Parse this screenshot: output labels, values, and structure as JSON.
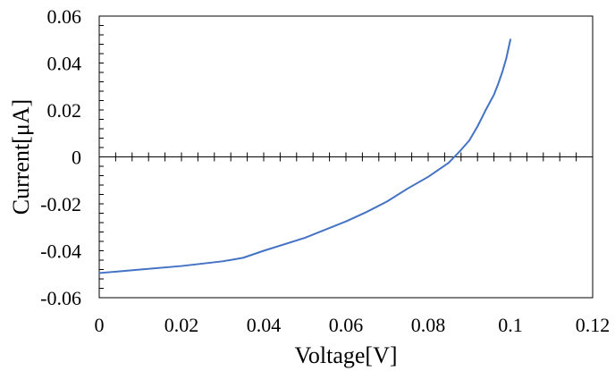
{
  "chart_data": {
    "type": "line",
    "title": "",
    "xlabel": "Voltage[V]",
    "ylabel": "Current[μA]",
    "xlim": [
      0,
      0.12
    ],
    "ylim": [
      -0.06,
      0.06
    ],
    "x_ticks": [
      0,
      0.02,
      0.04,
      0.06,
      0.08,
      0.1,
      0.12
    ],
    "x_tick_labels": [
      "0",
      "0.02",
      "0.04",
      "0.06",
      "0.08",
      "0.1",
      "0.12"
    ],
    "y_ticks": [
      -0.06,
      -0.04,
      -0.02,
      0,
      0.02,
      0.04,
      0.06
    ],
    "y_tick_labels": [
      "-0.06",
      "-0.04",
      "-0.02",
      "0",
      "0.02",
      "0.04",
      "0.06"
    ],
    "x_minor_tick_step": 0.004,
    "y_minor_tick_step": 0.004,
    "grid": false,
    "legend": "none",
    "series": [
      {
        "color": "#4472C4",
        "x": [
          0,
          0.01,
          0.02,
          0.03,
          0.035,
          0.04,
          0.05,
          0.06,
          0.065,
          0.07,
          0.075,
          0.08,
          0.085,
          0.088,
          0.09,
          0.092,
          0.094,
          0.096,
          0.097,
          0.098,
          0.099,
          0.1
        ],
        "y": [
          -0.0495,
          -0.048,
          -0.0465,
          -0.0445,
          -0.043,
          -0.04,
          -0.0345,
          -0.0275,
          -0.0235,
          -0.019,
          -0.0135,
          -0.0085,
          -0.0025,
          0.003,
          0.007,
          0.013,
          0.02,
          0.0265,
          0.031,
          0.036,
          0.042,
          0.05
        ]
      }
    ]
  }
}
